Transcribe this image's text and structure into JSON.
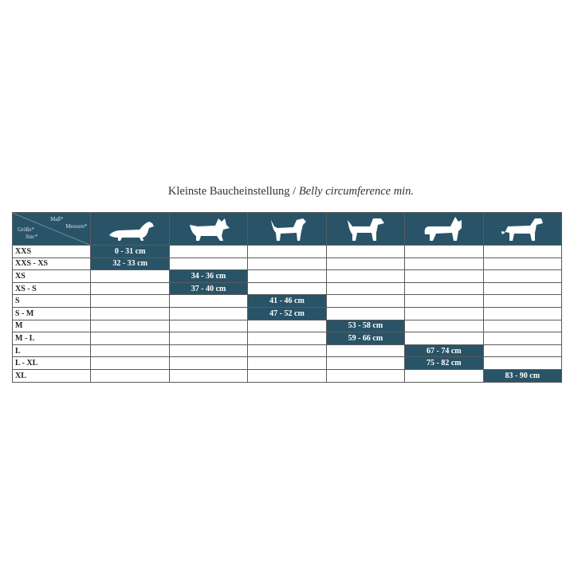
{
  "title": {
    "german": "Kleinste Baucheinstellung /",
    "english": "Belly circumference min."
  },
  "header": {
    "mass": "Maß*",
    "measure": "Messure*",
    "groesse": "Größe*",
    "size": "Size*",
    "dogs": [
      "dachshund-icon",
      "terrier-icon",
      "small-dog-icon",
      "schnauzer-icon",
      "shepherd-icon",
      "mastiff-icon"
    ]
  },
  "colors": {
    "header": "#295468",
    "grid": "#5a5a5a"
  },
  "rows": [
    {
      "size": "XXS",
      "col": 0,
      "value": "0 - 31 cm"
    },
    {
      "size": "XXS - XS",
      "col": 0,
      "value": "32 - 33 cm"
    },
    {
      "size": "XS",
      "col": 1,
      "value": "34 - 36 cm"
    },
    {
      "size": "XS - S",
      "col": 1,
      "value": "37 - 40 cm"
    },
    {
      "size": "S",
      "col": 2,
      "value": "41 - 46 cm"
    },
    {
      "size": "S - M",
      "col": 2,
      "value": "47 - 52 cm"
    },
    {
      "size": "M",
      "col": 3,
      "value": "53 - 58 cm"
    },
    {
      "size": "M - L",
      "col": 3,
      "value": "59 - 66 cm"
    },
    {
      "size": "L",
      "col": 4,
      "value": "67 - 74 cm"
    },
    {
      "size": "L - XL",
      "col": 4,
      "value": "75 - 82 cm"
    },
    {
      "size": "XL",
      "col": 5,
      "value": "83 - 90 cm"
    }
  ]
}
